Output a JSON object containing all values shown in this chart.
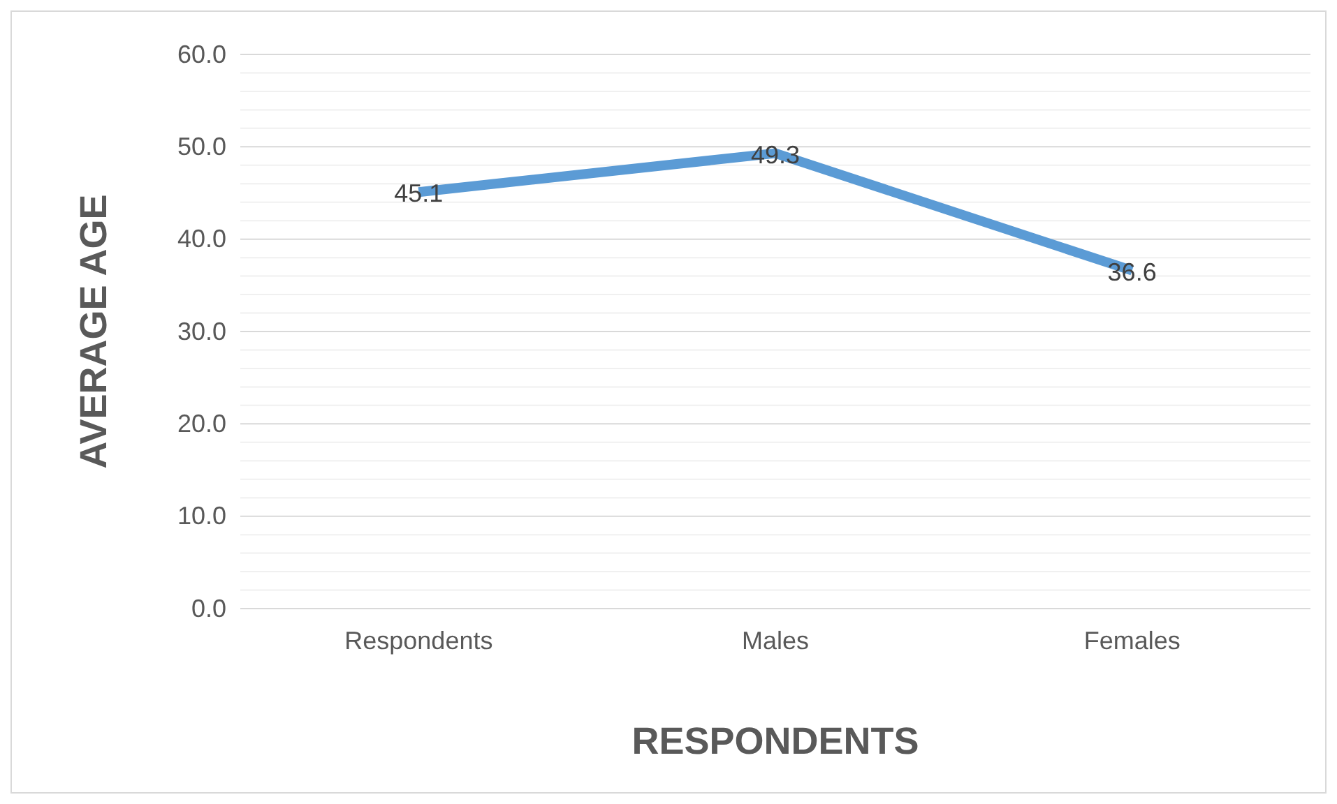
{
  "chart_data": {
    "type": "line",
    "xlabel": "RESPONDENTS",
    "ylabel": "AVERAGE AGE",
    "categories": [
      "Respondents",
      "Males",
      "Females"
    ],
    "series": [
      {
        "color": "#5b9bd5",
        "values": [
          45.1,
          49.3,
          36.6
        ]
      }
    ],
    "ylim": [
      0,
      60
    ],
    "yticks": [
      {
        "value": 0,
        "label": "0.0"
      },
      {
        "value": 2,
        "label": null
      },
      {
        "value": 4,
        "label": null
      },
      {
        "value": 6,
        "label": null
      },
      {
        "value": 8,
        "label": null
      },
      {
        "value": 10,
        "label": "10.0"
      },
      {
        "value": 12,
        "label": null
      },
      {
        "value": 14,
        "label": null
      },
      {
        "value": 16,
        "label": null
      },
      {
        "value": 18,
        "label": null
      },
      {
        "value": 20,
        "label": "20.0"
      },
      {
        "value": 22,
        "label": null
      },
      {
        "value": 24,
        "label": null
      },
      {
        "value": 26,
        "label": null
      },
      {
        "value": 28,
        "label": null
      },
      {
        "value": 30,
        "label": "30.0"
      },
      {
        "value": 32,
        "label": null
      },
      {
        "value": 34,
        "label": null
      },
      {
        "value": 36,
        "label": null
      },
      {
        "value": 38,
        "label": null
      },
      {
        "value": 40,
        "label": "40.0"
      },
      {
        "value": 42,
        "label": null
      },
      {
        "value": 44,
        "label": null
      },
      {
        "value": 46,
        "label": null
      },
      {
        "value": 48,
        "label": null
      },
      {
        "value": 50,
        "label": "50.0"
      },
      {
        "value": 52,
        "label": null
      },
      {
        "value": 54,
        "label": null
      },
      {
        "value": 56,
        "label": null
      },
      {
        "value": 58,
        "label": null
      },
      {
        "value": 60,
        "label": "60.0"
      }
    ],
    "grid": "y",
    "data_labels": true,
    "marker": "none",
    "line_style": "solid"
  }
}
